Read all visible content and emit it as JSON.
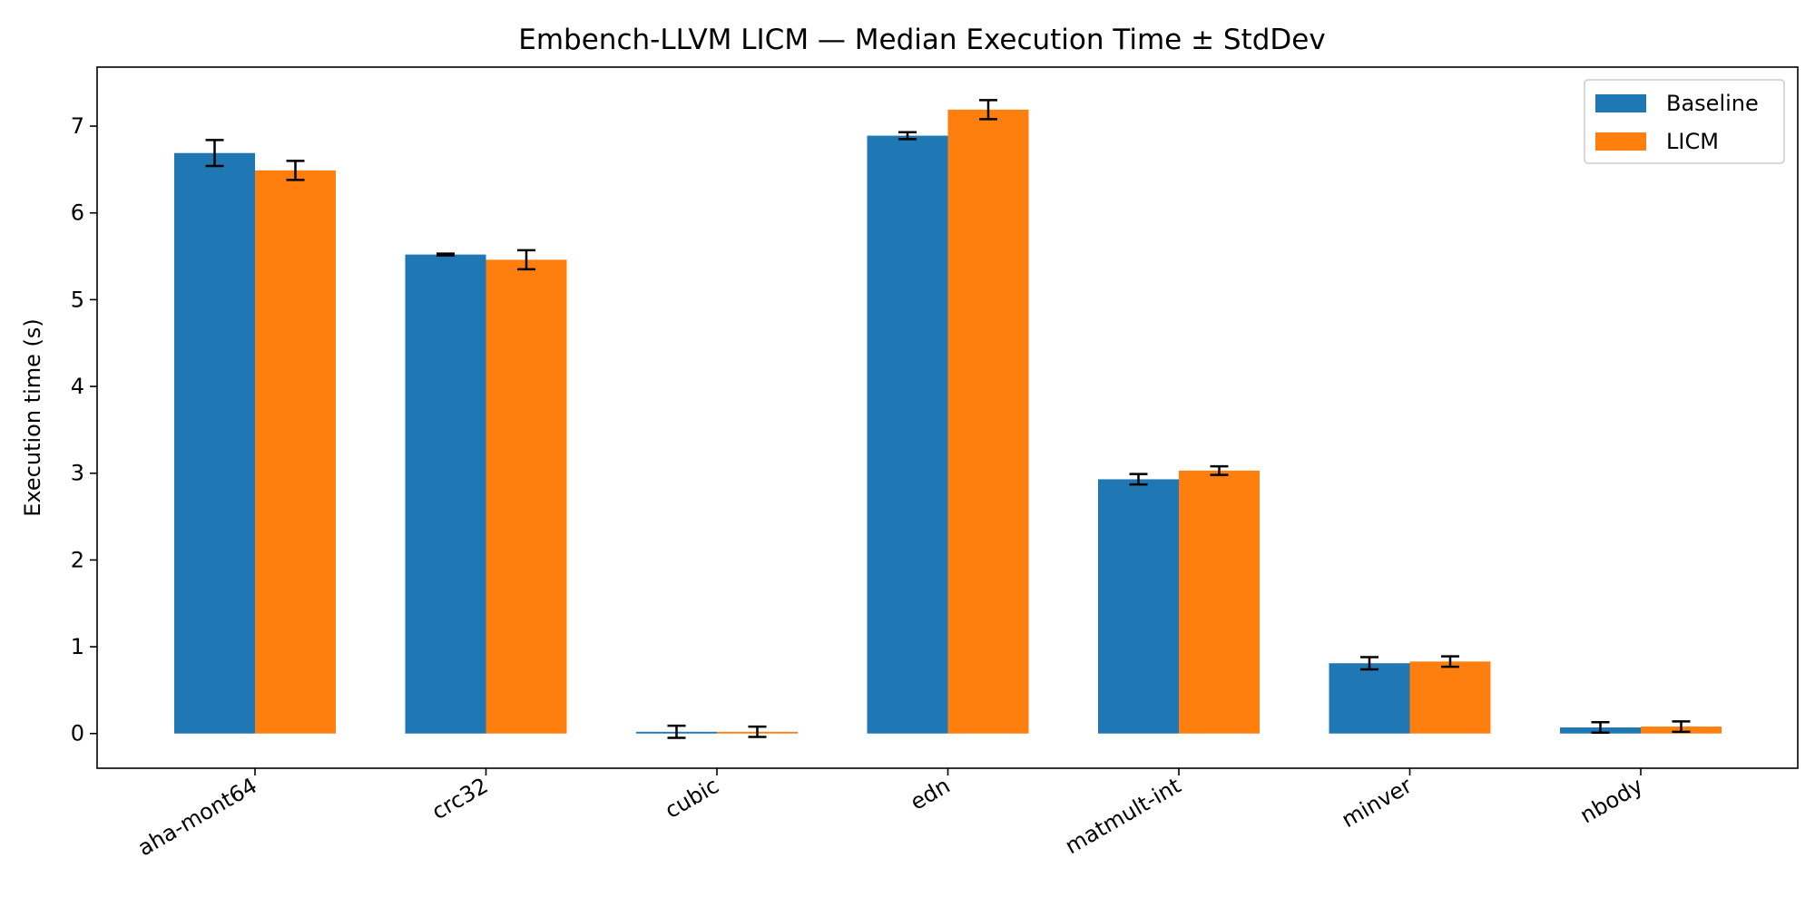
{
  "chart_data": {
    "type": "bar",
    "title": "Embench-LLVM LICM — Median Execution Time ± StdDev",
    "xlabel": "",
    "ylabel": "Execution time (s)",
    "ylim": [
      -0.4,
      7.68
    ],
    "yticks": [
      0,
      1,
      2,
      3,
      4,
      5,
      6,
      7
    ],
    "grid": false,
    "legend_position": "top-right",
    "categories": [
      "aha-mont64",
      "crc32",
      "cubic",
      "edn",
      "matmult-int",
      "minver",
      "nbody"
    ],
    "series": [
      {
        "name": "Baseline",
        "color": "#1f77b4",
        "values": [
          6.69,
          5.52,
          0.02,
          6.89,
          2.93,
          0.81,
          0.07
        ],
        "errors": [
          0.15,
          0.01,
          0.07,
          0.04,
          0.06,
          0.07,
          0.06
        ]
      },
      {
        "name": "LICM",
        "color": "#ff7f0e",
        "values": [
          6.49,
          5.46,
          0.02,
          7.19,
          3.03,
          0.83,
          0.08
        ],
        "errors": [
          0.11,
          0.11,
          0.06,
          0.11,
          0.05,
          0.06,
          0.06
        ]
      }
    ]
  }
}
